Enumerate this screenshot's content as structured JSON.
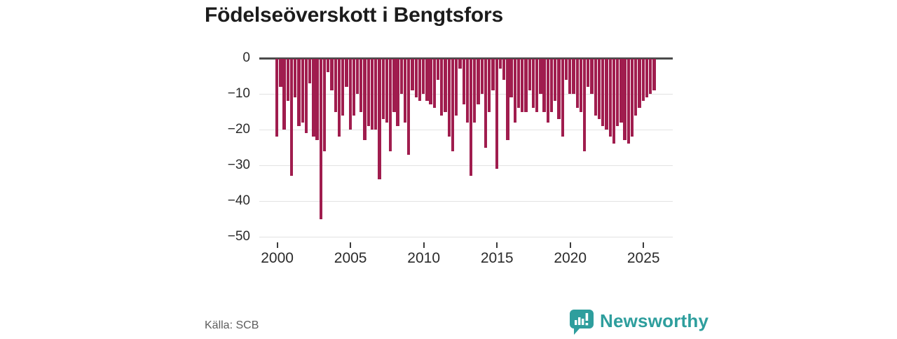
{
  "title": "Födelseöverskott i Bengtsfors",
  "source_label": "Källa: SCB",
  "logo": {
    "text": "Newsworthy",
    "color": "#2e9e9d",
    "icon": "newsworthy-speech-bubble-chart-icon"
  },
  "colors": {
    "bar": "#a01d4e",
    "grid": "#e2e2e2",
    "zero_line": "#4b4b4b",
    "axis_text": "#2b2b2b",
    "title_text": "#1c1c1c",
    "source_text": "#5d5d5d",
    "background": "#ffffff"
  },
  "chart_data": {
    "type": "bar",
    "title": "Födelseöverskott i Bengtsfors",
    "xlabel": "",
    "ylabel": "",
    "frequency": "quarterly",
    "start_year": 2000,
    "bars_per_year": 4,
    "ylim": [
      -50,
      0
    ],
    "grid": "horizontal",
    "legend": "none",
    "y_ticks": [
      0,
      -10,
      -20,
      -30,
      -40,
      -50
    ],
    "y_tick_labels": [
      "0",
      "−10",
      "−20",
      "−30",
      "−40",
      "−50"
    ],
    "x_tick_years": [
      2000,
      2005,
      2010,
      2015,
      2020,
      2025
    ],
    "x_tick_labels": [
      "2000",
      "2005",
      "2010",
      "2015",
      "2020",
      "2025"
    ],
    "values": [
      -22,
      -8,
      -20,
      -12,
      -33,
      -11,
      -19,
      -18,
      -21,
      -7,
      -22,
      -23,
      -45,
      -26,
      -4,
      -9,
      -15,
      -22,
      -16,
      -8,
      -20,
      -16,
      -10,
      -15,
      -23,
      -19,
      -20,
      -20,
      -34,
      -17,
      -18,
      -26,
      -15,
      -19,
      -10,
      -18,
      -27,
      -9,
      -11,
      -12,
      -10,
      -12,
      -13,
      -14,
      -6,
      -16,
      -15,
      -22,
      -26,
      -16,
      -3,
      -13,
      -18,
      -33,
      -18,
      -13,
      -10,
      -25,
      -15,
      -9,
      -31,
      -3,
      -6,
      -23,
      -11,
      -18,
      -14,
      -15,
      -15,
      -9,
      -14,
      -15,
      -10,
      -15,
      -18,
      -15,
      -12,
      -17,
      -22,
      -6,
      -10,
      -10,
      -14,
      -15,
      -26,
      -8,
      -10,
      -16,
      -17,
      -19,
      -20,
      -22,
      -24,
      -19,
      -18,
      -23,
      -24,
      -22,
      -16,
      -14,
      -12,
      -11,
      -10,
      -9
    ]
  }
}
